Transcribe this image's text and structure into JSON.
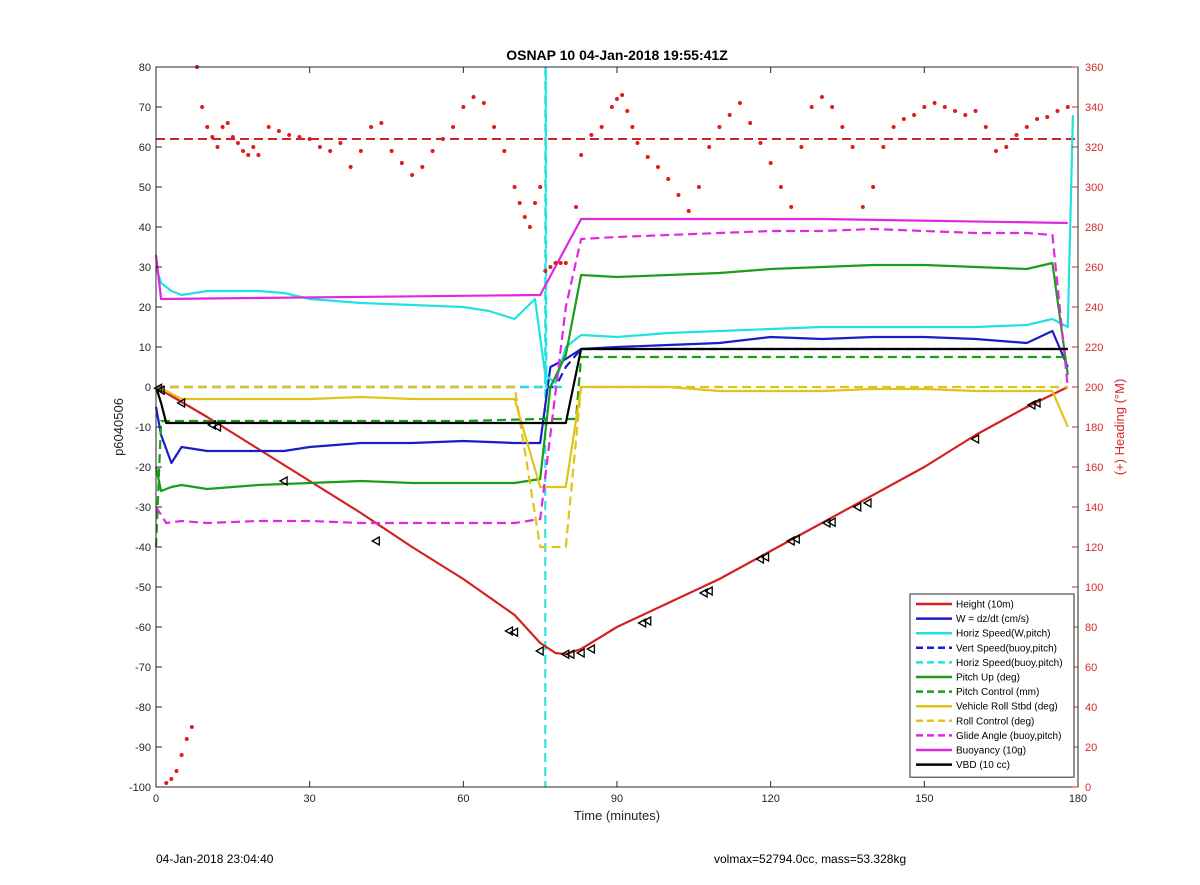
{
  "chart_data": {
    "type": "line",
    "title": "OSNAP 10 04-Jan-2018 19:55:41Z",
    "xlabel": "Time (minutes)",
    "ylabel": "p6040506",
    "ylabel_right": "(+) Heading (°M)",
    "xlim": [
      0,
      180
    ],
    "ylim": [
      -100,
      80
    ],
    "ylim_right": [
      0,
      360
    ],
    "x_ticks": [
      0,
      30,
      60,
      90,
      120,
      150,
      180
    ],
    "y_ticks": [
      80,
      70,
      60,
      50,
      40,
      30,
      20,
      10,
      0,
      -10,
      -20,
      -30,
      -40,
      -50,
      -60,
      -70,
      -80,
      -90,
      -100
    ],
    "y_ticks_right": [
      360,
      340,
      320,
      300,
      280,
      260,
      240,
      220,
      200,
      180,
      160,
      140,
      120,
      100,
      80,
      60,
      40,
      20,
      0
    ],
    "grid": false,
    "legend_position": "bottom-right",
    "series": [
      {
        "name": "Height (10m)",
        "color": "#d42020",
        "style": "solid",
        "x": [
          0,
          10,
          20,
          30,
          40,
          50,
          60,
          70,
          75,
          78,
          80,
          83,
          90,
          100,
          110,
          120,
          130,
          140,
          150,
          160,
          170,
          178
        ],
        "y": [
          0,
          -7.5,
          -15.5,
          -23.5,
          -31.5,
          -40,
          -48,
          -57,
          -64,
          -66.5,
          -66.8,
          -65.5,
          -60,
          -54,
          -48,
          -41,
          -34,
          -27,
          -20,
          -12,
          -5,
          0
        ]
      },
      {
        "name": "W = dz/dt (cm/s)",
        "color": "#1c1cc8",
        "style": "solid",
        "x": [
          0,
          1,
          3,
          5,
          10,
          20,
          25,
          30,
          40,
          50,
          60,
          70,
          75,
          77,
          80,
          83,
          90,
          100,
          110,
          120,
          130,
          140,
          150,
          160,
          170,
          175,
          178
        ],
        "y": [
          -5,
          -12,
          -19,
          -15,
          -16,
          -16,
          -16,
          -15,
          -14,
          -14,
          -13.5,
          -14,
          -14,
          5,
          7,
          9.5,
          10,
          10.5,
          11,
          12.5,
          12,
          12.5,
          12.5,
          12,
          11,
          14,
          5
        ]
      },
      {
        "name": "Horiz Speed(W,pitch)",
        "color": "#1fe3e3",
        "style": "solid",
        "x": [
          0,
          1,
          3,
          5,
          10,
          15,
          20,
          25,
          30,
          40,
          50,
          60,
          65,
          70,
          74,
          76,
          78,
          80,
          83,
          90,
          100,
          110,
          120,
          130,
          140,
          150,
          160,
          170,
          175,
          178,
          179
        ],
        "y": [
          30,
          26,
          24,
          23,
          24,
          24,
          24,
          23.5,
          22,
          21,
          20.5,
          20,
          19,
          17,
          22,
          3,
          1,
          10,
          13,
          12.5,
          13.5,
          14,
          14.5,
          15,
          15,
          15,
          15,
          15.5,
          17,
          15,
          68
        ]
      },
      {
        "name": "Vert Speed(buoy,pitch)",
        "color": "#1c1cc8",
        "style": "dashed",
        "x": [
          0,
          75,
          78,
          80,
          83,
          178
        ],
        "y": [
          0,
          0,
          0,
          5,
          9.5,
          9.5
        ]
      },
      {
        "name": "Horiz Speed(buoy,pitch)",
        "color": "#1fe3e3",
        "style": "dashed",
        "x": [
          0,
          75,
          76,
          76.1,
          76.2,
          77,
          80
        ],
        "y": [
          0,
          0,
          0,
          80,
          0,
          0,
          0
        ]
      },
      {
        "name": "Pitch Up (deg)",
        "color": "#1a9e1a",
        "style": "solid",
        "x": [
          0,
          1,
          3,
          5,
          10,
          20,
          30,
          40,
          50,
          60,
          70,
          75,
          77,
          80,
          83,
          90,
          100,
          110,
          120,
          130,
          140,
          150,
          160,
          170,
          175,
          178
        ],
        "y": [
          -20,
          -26,
          -25,
          -24.5,
          -25.5,
          -24.5,
          -24,
          -23.5,
          -24,
          -24,
          -24,
          -23,
          0,
          8,
          28,
          27.5,
          28,
          28.5,
          29.5,
          30,
          30.5,
          30.5,
          30,
          29.5,
          31,
          3
        ]
      },
      {
        "name": "Pitch Control (mm)",
        "color": "#1a9e1a",
        "style": "dashed",
        "x": [
          0,
          1,
          2,
          10,
          30,
          60,
          75,
          76,
          82,
          83,
          178
        ],
        "y": [
          -40,
          -8.5,
          -8.5,
          -8.5,
          -8.5,
          -8.5,
          -8,
          -8,
          -8,
          7.5,
          7.5
        ]
      },
      {
        "name": "Vehicle Roll Stbd (deg)",
        "color": "#e0c418",
        "style": "solid",
        "x": [
          0,
          2,
          5,
          10,
          20,
          30,
          40,
          50,
          60,
          70,
          75,
          80,
          83,
          90,
          100,
          110,
          120,
          130,
          140,
          150,
          160,
          170,
          175,
          178
        ],
        "y": [
          0,
          -1,
          -3,
          -3,
          -3,
          -3,
          -2.5,
          -3,
          -3,
          -3,
          -25,
          -25,
          0,
          0,
          0,
          -1,
          -1,
          -1,
          -0.5,
          -0.5,
          -1,
          -1,
          -1,
          -10
        ]
      },
      {
        "name": "Roll Control (deg)",
        "color": "#e0c418",
        "style": "dashed",
        "x": [
          0,
          2,
          5,
          10,
          20,
          30,
          40,
          50,
          60,
          70,
          75,
          80,
          83,
          90,
          100,
          110,
          120,
          130,
          140,
          150,
          160,
          170,
          178
        ],
        "y": [
          0,
          0,
          0,
          0,
          0,
          0,
          0,
          0,
          0,
          0,
          -40,
          -40,
          0,
          0,
          0,
          0,
          0,
          0,
          0,
          0,
          0,
          0,
          0
        ]
      },
      {
        "name": "Glide Angle (buoy,pitch)",
        "color": "#e028e0",
        "style": "dashed",
        "x": [
          0,
          2,
          5,
          10,
          20,
          30,
          40,
          50,
          60,
          70,
          75,
          80,
          83,
          90,
          100,
          110,
          120,
          130,
          140,
          150,
          160,
          170,
          175,
          178
        ],
        "y": [
          -30,
          -34,
          -33.5,
          -34,
          -33.5,
          -33.5,
          -34,
          -34,
          -34,
          -34,
          -33,
          20,
          37,
          37.5,
          38,
          38.5,
          39,
          39,
          39.5,
          39,
          38.5,
          38.5,
          38,
          0
        ]
      },
      {
        "name": "Buoyancy (10g)",
        "color": "#e028e0",
        "style": "solid",
        "x": [
          0,
          1,
          75,
          83,
          130,
          178
        ],
        "y": [
          33,
          22,
          23,
          42,
          42,
          41
        ]
      },
      {
        "name": "VBD (10 cc)",
        "color": "#000000",
        "style": "solid",
        "x": [
          0,
          1,
          2,
          10,
          30,
          60,
          75,
          79,
          80,
          83,
          178
        ],
        "y": [
          0,
          -4,
          -9,
          -9,
          -9,
          -9,
          -9,
          -9,
          -9,
          9.5,
          9.5
        ]
      }
    ],
    "heading": {
      "axis": "right",
      "color": "#e01a1a",
      "style": "dots",
      "x": [
        2,
        3,
        4,
        5,
        6,
        7,
        8,
        9,
        10,
        11,
        12,
        13,
        14,
        15,
        16,
        17,
        18,
        19,
        20,
        22,
        24,
        26,
        28,
        30,
        32,
        34,
        36,
        38,
        40,
        42,
        44,
        46,
        48,
        50,
        52,
        54,
        56,
        58,
        60,
        62,
        64,
        66,
        68,
        70,
        71,
        72,
        73,
        74,
        75,
        76,
        77,
        78,
        79,
        80,
        82,
        83,
        85,
        87,
        89,
        90,
        91,
        92,
        93,
        94,
        96,
        98,
        100,
        102,
        104,
        106,
        108,
        110,
        112,
        114,
        116,
        118,
        120,
        122,
        124,
        126,
        128,
        130,
        132,
        134,
        136,
        138,
        140,
        142,
        144,
        146,
        148,
        150,
        152,
        154,
        156,
        158,
        160,
        162,
        164,
        166,
        168,
        170,
        172,
        174,
        176,
        178
      ],
      "y": [
        2,
        4,
        8,
        16,
        24,
        30,
        360,
        340,
        330,
        325,
        320,
        330,
        332,
        325,
        322,
        318,
        316,
        320,
        316,
        330,
        328,
        326,
        325,
        324,
        320,
        318,
        322,
        310,
        318,
        330,
        332,
        318,
        312,
        306,
        310,
        318,
        324,
        330,
        340,
        345,
        342,
        330,
        318,
        300,
        292,
        285,
        280,
        292,
        300,
        258,
        260,
        262,
        262,
        262,
        290,
        316,
        326,
        330,
        340,
        344,
        346,
        338,
        330,
        322,
        315,
        310,
        304,
        296,
        288,
        300,
        320,
        330,
        336,
        342,
        332,
        322,
        312,
        300,
        290,
        320,
        340,
        345,
        340,
        330,
        320,
        290,
        300,
        320,
        330,
        334,
        336,
        340,
        342,
        340,
        338,
        336,
        338,
        330,
        318,
        320,
        326,
        330,
        334,
        335,
        338,
        340
      ]
    },
    "height_markers": {
      "symbol": "triangle-left",
      "x": [
        0.5,
        1,
        5,
        11,
        12,
        25,
        43,
        69,
        70,
        75,
        80,
        81,
        83,
        85,
        95,
        96,
        107,
        108,
        118,
        119,
        124,
        125,
        131,
        132,
        137,
        139,
        160,
        171,
        172
      ],
      "y": [
        -0.3,
        -0.8,
        -4,
        -9.5,
        -10,
        -23.5,
        -38.5,
        -61,
        -61.3,
        -66,
        -66.8,
        -66.8,
        -66.5,
        -65.5,
        -59,
        -58.5,
        -51.5,
        -51,
        -43,
        -42.5,
        -38.5,
        -38,
        -34,
        -33.8,
        -30,
        -29,
        -13,
        -4.5,
        -4
      ]
    },
    "reference_lines": [
      {
        "axis": "right",
        "y": 324,
        "color": "#d42020",
        "style": "dashed"
      },
      {
        "axis": "left",
        "x": 76,
        "color": "#1fe3e3",
        "style": "dashed",
        "orientation": "vertical"
      }
    ]
  },
  "footer": {
    "left": "04-Jan-2018 23:04:40",
    "right": "volmax=52794.0cc, mass=53.328kg"
  }
}
